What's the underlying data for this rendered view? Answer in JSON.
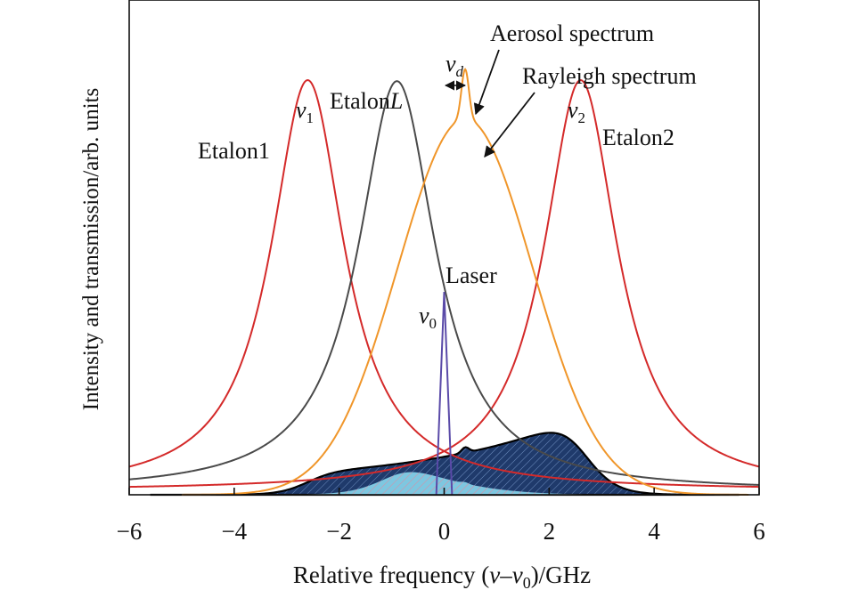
{
  "chart_data": {
    "type": "line",
    "title": "",
    "xlabel_parts": [
      "Relative frequency (",
      "ν",
      "–",
      "ν",
      "0",
      ")/GHz"
    ],
    "ylabel": "Intensity and transmission/arb. units",
    "xlim": [
      -6,
      6
    ],
    "ylim": [
      0,
      1
    ],
    "x_ticks": [
      -6,
      -4,
      -2,
      0,
      2,
      4,
      6
    ],
    "x_tick_labels": [
      "−6",
      "−4",
      "−2",
      "0",
      "2",
      "4",
      "6"
    ],
    "grid": false,
    "legend": "none",
    "colors": {
      "etalon": "#d42a2a",
      "etalon_l": "#4a4a4a",
      "rayleigh": "#f0962a",
      "laser": "#5a4aa8",
      "shaded_dark": "#1f3a6b",
      "shaded_light": "#7ec7e0"
    },
    "series": [
      {
        "key": "etalon1",
        "type": "lorentzian",
        "center": -2.6,
        "hwhm": 0.85,
        "peak": 0.83,
        "base": 0.008
      },
      {
        "key": "etalonL",
        "type": "lorentzian",
        "center": -0.9,
        "hwhm": 0.9,
        "peak": 0.83,
        "base": 0.006
      },
      {
        "key": "etalon2",
        "type": "lorentzian",
        "center": 2.6,
        "hwhm": 0.85,
        "peak": 0.83,
        "base": 0.008
      },
      {
        "key": "rayleigh",
        "type": "gaussian",
        "center": 0.4,
        "sigma": 1.28,
        "peak": 0.76,
        "aerosol_peak_extra": 0.1,
        "aerosol_sigma": 0.07
      },
      {
        "key": "laser",
        "type": "triangle",
        "center": 0.0,
        "half_width": 0.15,
        "peak": 0.41
      }
    ],
    "annotations": {
      "etalon1": "Etalon1",
      "etalonL_prefix": "Etalon",
      "etalonL_suffix": "L",
      "etalon2": "Etalon2",
      "laser": "Laser",
      "aerosol": "Aerosol spectrum",
      "rayleigh": "Rayleigh spectrum",
      "v1_base": "ν",
      "v1_sub": "1",
      "v2_base": "ν",
      "v2_sub": "2",
      "v0_base": "ν",
      "v0_sub": "0",
      "vd_base": "ν",
      "vd_sub": "d"
    }
  }
}
